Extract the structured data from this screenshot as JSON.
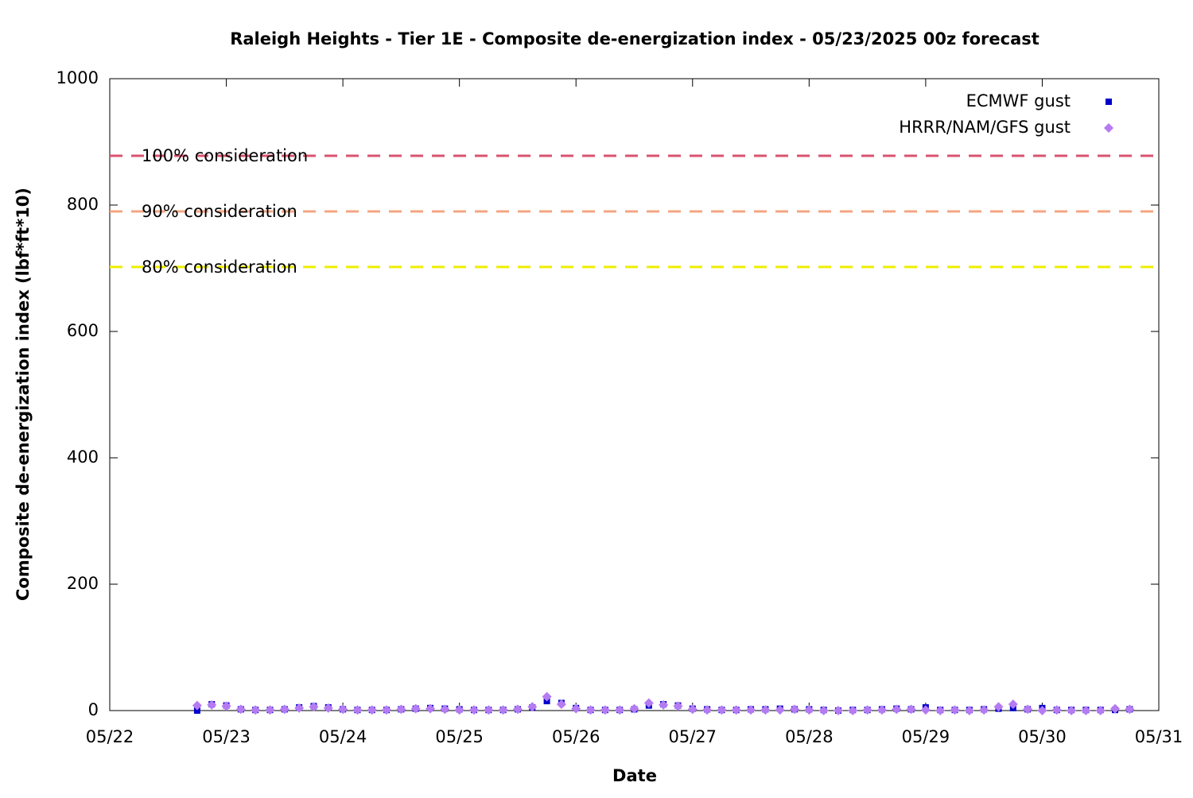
{
  "chart_data": {
    "type": "scatter",
    "title": "Raleigh Heights - Tier 1E - Composite de-energization index - 05/23/2025 00z forecast",
    "x_label": "Date",
    "y_label": "Composite de-energization index (lbf*ft*10)",
    "xlim": [
      0,
      9
    ],
    "xticks": [
      {
        "value": 0,
        "label": "05/22"
      },
      {
        "value": 1,
        "label": "05/23"
      },
      {
        "value": 2,
        "label": "05/24"
      },
      {
        "value": 3,
        "label": "05/25"
      },
      {
        "value": 4,
        "label": "05/26"
      },
      {
        "value": 5,
        "label": "05/27"
      },
      {
        "value": 6,
        "label": "05/28"
      },
      {
        "value": 7,
        "label": "05/29"
      },
      {
        "value": 8,
        "label": "05/30"
      },
      {
        "value": 9,
        "label": "05/31"
      }
    ],
    "ylim": [
      0,
      1000
    ],
    "yticks": [
      0,
      200,
      400,
      600,
      800,
      1000
    ],
    "legend_position": "top-right",
    "thresholds": [
      {
        "label": "100% consideration",
        "value": 878,
        "color": "#d9536f"
      },
      {
        "label": "90% consideration",
        "value": 790,
        "color": "#f4a582"
      },
      {
        "label": "80% consideration",
        "value": 702,
        "color": "#eeee00"
      }
    ],
    "x": [
      0.75,
      0.875,
      1,
      1.125,
      1.25,
      1.375,
      1.5,
      1.625,
      1.75,
      1.875,
      2,
      2.125,
      2.25,
      2.375,
      2.5,
      2.625,
      2.75,
      2.875,
      3,
      3.125,
      3.25,
      3.375,
      3.5,
      3.625,
      3.75,
      3.875,
      4,
      4.125,
      4.25,
      4.375,
      4.5,
      4.625,
      4.75,
      4.875,
      5,
      5.125,
      5.25,
      5.375,
      5.5,
      5.625,
      5.75,
      5.875,
      6,
      6.125,
      6.25,
      6.375,
      6.5,
      6.625,
      6.75,
      6.875,
      7,
      7.125,
      7.25,
      7.375,
      7.5,
      7.625,
      7.75,
      7.875,
      8,
      8.125,
      8.25,
      8.375,
      8.5,
      8.625,
      8.75
    ],
    "series": [
      {
        "name": "ECMWF gust",
        "color": "#0000cc",
        "marker": "square",
        "values": [
          0,
          10,
          8,
          2,
          1,
          1,
          2,
          5,
          7,
          5,
          2,
          1,
          1,
          1,
          2,
          3,
          4,
          3,
          2,
          1,
          1,
          1,
          2,
          5,
          15,
          12,
          4,
          1,
          1,
          1,
          2,
          8,
          10,
          8,
          3,
          2,
          1,
          1,
          2,
          2,
          3,
          2,
          2,
          1,
          0,
          1,
          1,
          2,
          3,
          2,
          5,
          1,
          1,
          1,
          2,
          3,
          4,
          2,
          4,
          1,
          1,
          1,
          1,
          1,
          2
        ]
      },
      {
        "name": "HRRR/NAM/GFS gust",
        "color": "#b57bf2",
        "marker": "diamond",
        "values": [
          8,
          9,
          7,
          2,
          1,
          1,
          2,
          4,
          6,
          4,
          2,
          1,
          1,
          1,
          2,
          3,
          3,
          2,
          1,
          1,
          1,
          1,
          2,
          6,
          22,
          10,
          3,
          1,
          1,
          1,
          3,
          12,
          9,
          7,
          2,
          1,
          1,
          1,
          1,
          1,
          1,
          2,
          1,
          0,
          0,
          0,
          1,
          1,
          2,
          2,
          1,
          0,
          1,
          0,
          1,
          6,
          10,
          2,
          0,
          1,
          0,
          0,
          0,
          3,
          2
        ]
      }
    ]
  }
}
